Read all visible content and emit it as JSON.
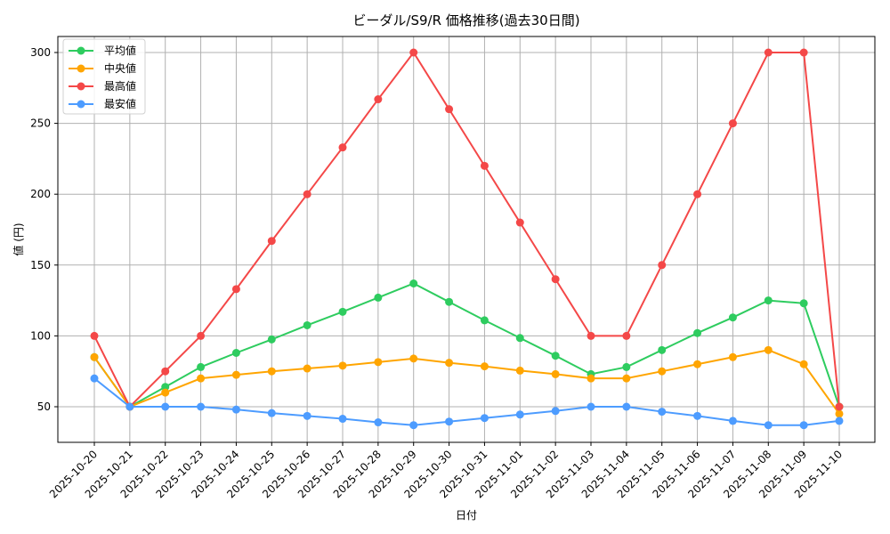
{
  "chart_data": {
    "type": "line",
    "title": "ビーダル/S9/R 価格推移(過去30日間)",
    "xlabel": "日付",
    "ylabel": "値 (円)",
    "ylim": [
      24,
      313
    ],
    "yticks": [
      50,
      100,
      150,
      200,
      250,
      300
    ],
    "grid": true,
    "legend_position": "upper left",
    "categories": [
      "2025-10-20",
      "2025-10-21",
      "2025-10-22",
      "2025-10-23",
      "2025-10-24",
      "2025-10-25",
      "2025-10-26",
      "2025-10-27",
      "2025-10-28",
      "2025-10-29",
      "2025-10-30",
      "2025-10-31",
      "2025-11-01",
      "2025-11-02",
      "2025-11-03",
      "2025-11-04",
      "2025-11-05",
      "2025-11-06",
      "2025-11-07",
      "2025-11-08",
      "2025-11-09",
      "2025-11-10"
    ],
    "series": [
      {
        "name": "平均値",
        "color": "#2ecc5f",
        "values": [
          85,
          50,
          64,
          78,
          88,
          97.5,
          107.5,
          117,
          127,
          137,
          124,
          111,
          98.5,
          86,
          73,
          78,
          90,
          102,
          113,
          125,
          123,
          50
        ]
      },
      {
        "name": "中央値",
        "color": "#ffa500",
        "values": [
          85,
          50,
          60,
          70,
          72.5,
          75,
          77,
          79,
          81.5,
          84,
          81,
          78.5,
          75.5,
          73,
          70,
          70,
          75,
          80,
          85,
          90,
          80,
          45
        ]
      },
      {
        "name": "最高値",
        "color": "#f44848",
        "values": [
          100,
          50,
          75,
          100,
          133,
          167,
          200,
          233,
          267,
          300,
          260,
          220,
          180,
          140,
          100,
          100,
          150,
          200,
          250,
          300,
          300,
          50
        ]
      },
      {
        "name": "最安値",
        "color": "#4d9cff",
        "values": [
          70,
          50,
          50,
          50,
          48,
          45.5,
          43.5,
          41.5,
          39,
          37,
          39.5,
          42,
          44.5,
          47,
          50,
          50,
          46.5,
          43.5,
          40,
          37,
          37,
          40
        ]
      }
    ]
  }
}
